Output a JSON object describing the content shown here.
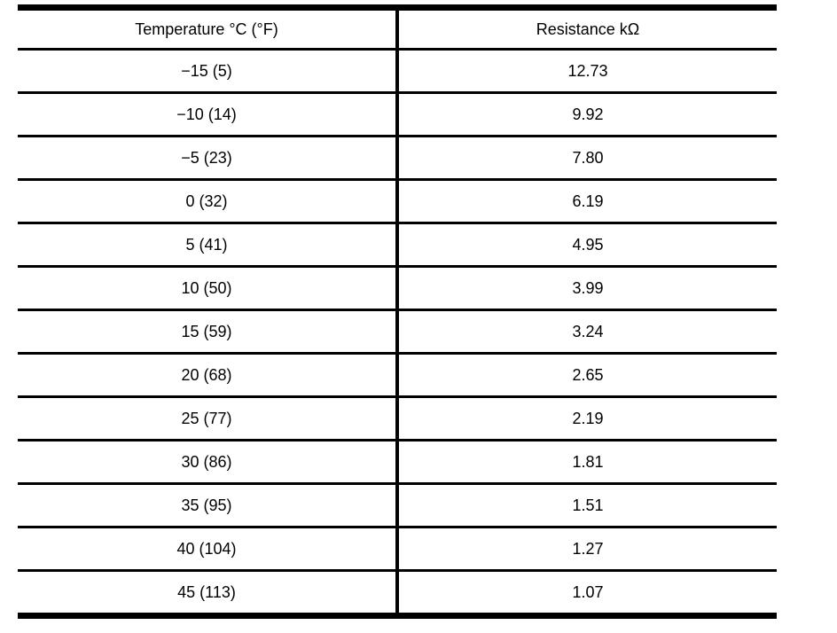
{
  "table": {
    "columns": {
      "temperature": "Temperature °C (°F)",
      "resistance": "Resistance kΩ"
    },
    "rows": [
      {
        "temperature": "−15 (5)",
        "resistance": "12.73"
      },
      {
        "temperature": "−10 (14)",
        "resistance": "9.92"
      },
      {
        "temperature": "−5 (23)",
        "resistance": "7.80"
      },
      {
        "temperature": "0 (32)",
        "resistance": "6.19"
      },
      {
        "temperature": "5 (41)",
        "resistance": "4.95"
      },
      {
        "temperature": "10 (50)",
        "resistance": "3.99"
      },
      {
        "temperature": "15 (59)",
        "resistance": "3.24"
      },
      {
        "temperature": "20 (68)",
        "resistance": "2.65"
      },
      {
        "temperature": "25 (77)",
        "resistance": "2.19"
      },
      {
        "temperature": "30 (86)",
        "resistance": "1.81"
      },
      {
        "temperature": "35 (95)",
        "resistance": "1.51"
      },
      {
        "temperature": "40 (104)",
        "resistance": "1.27"
      },
      {
        "temperature": "45 (113)",
        "resistance": "1.07"
      }
    ]
  }
}
